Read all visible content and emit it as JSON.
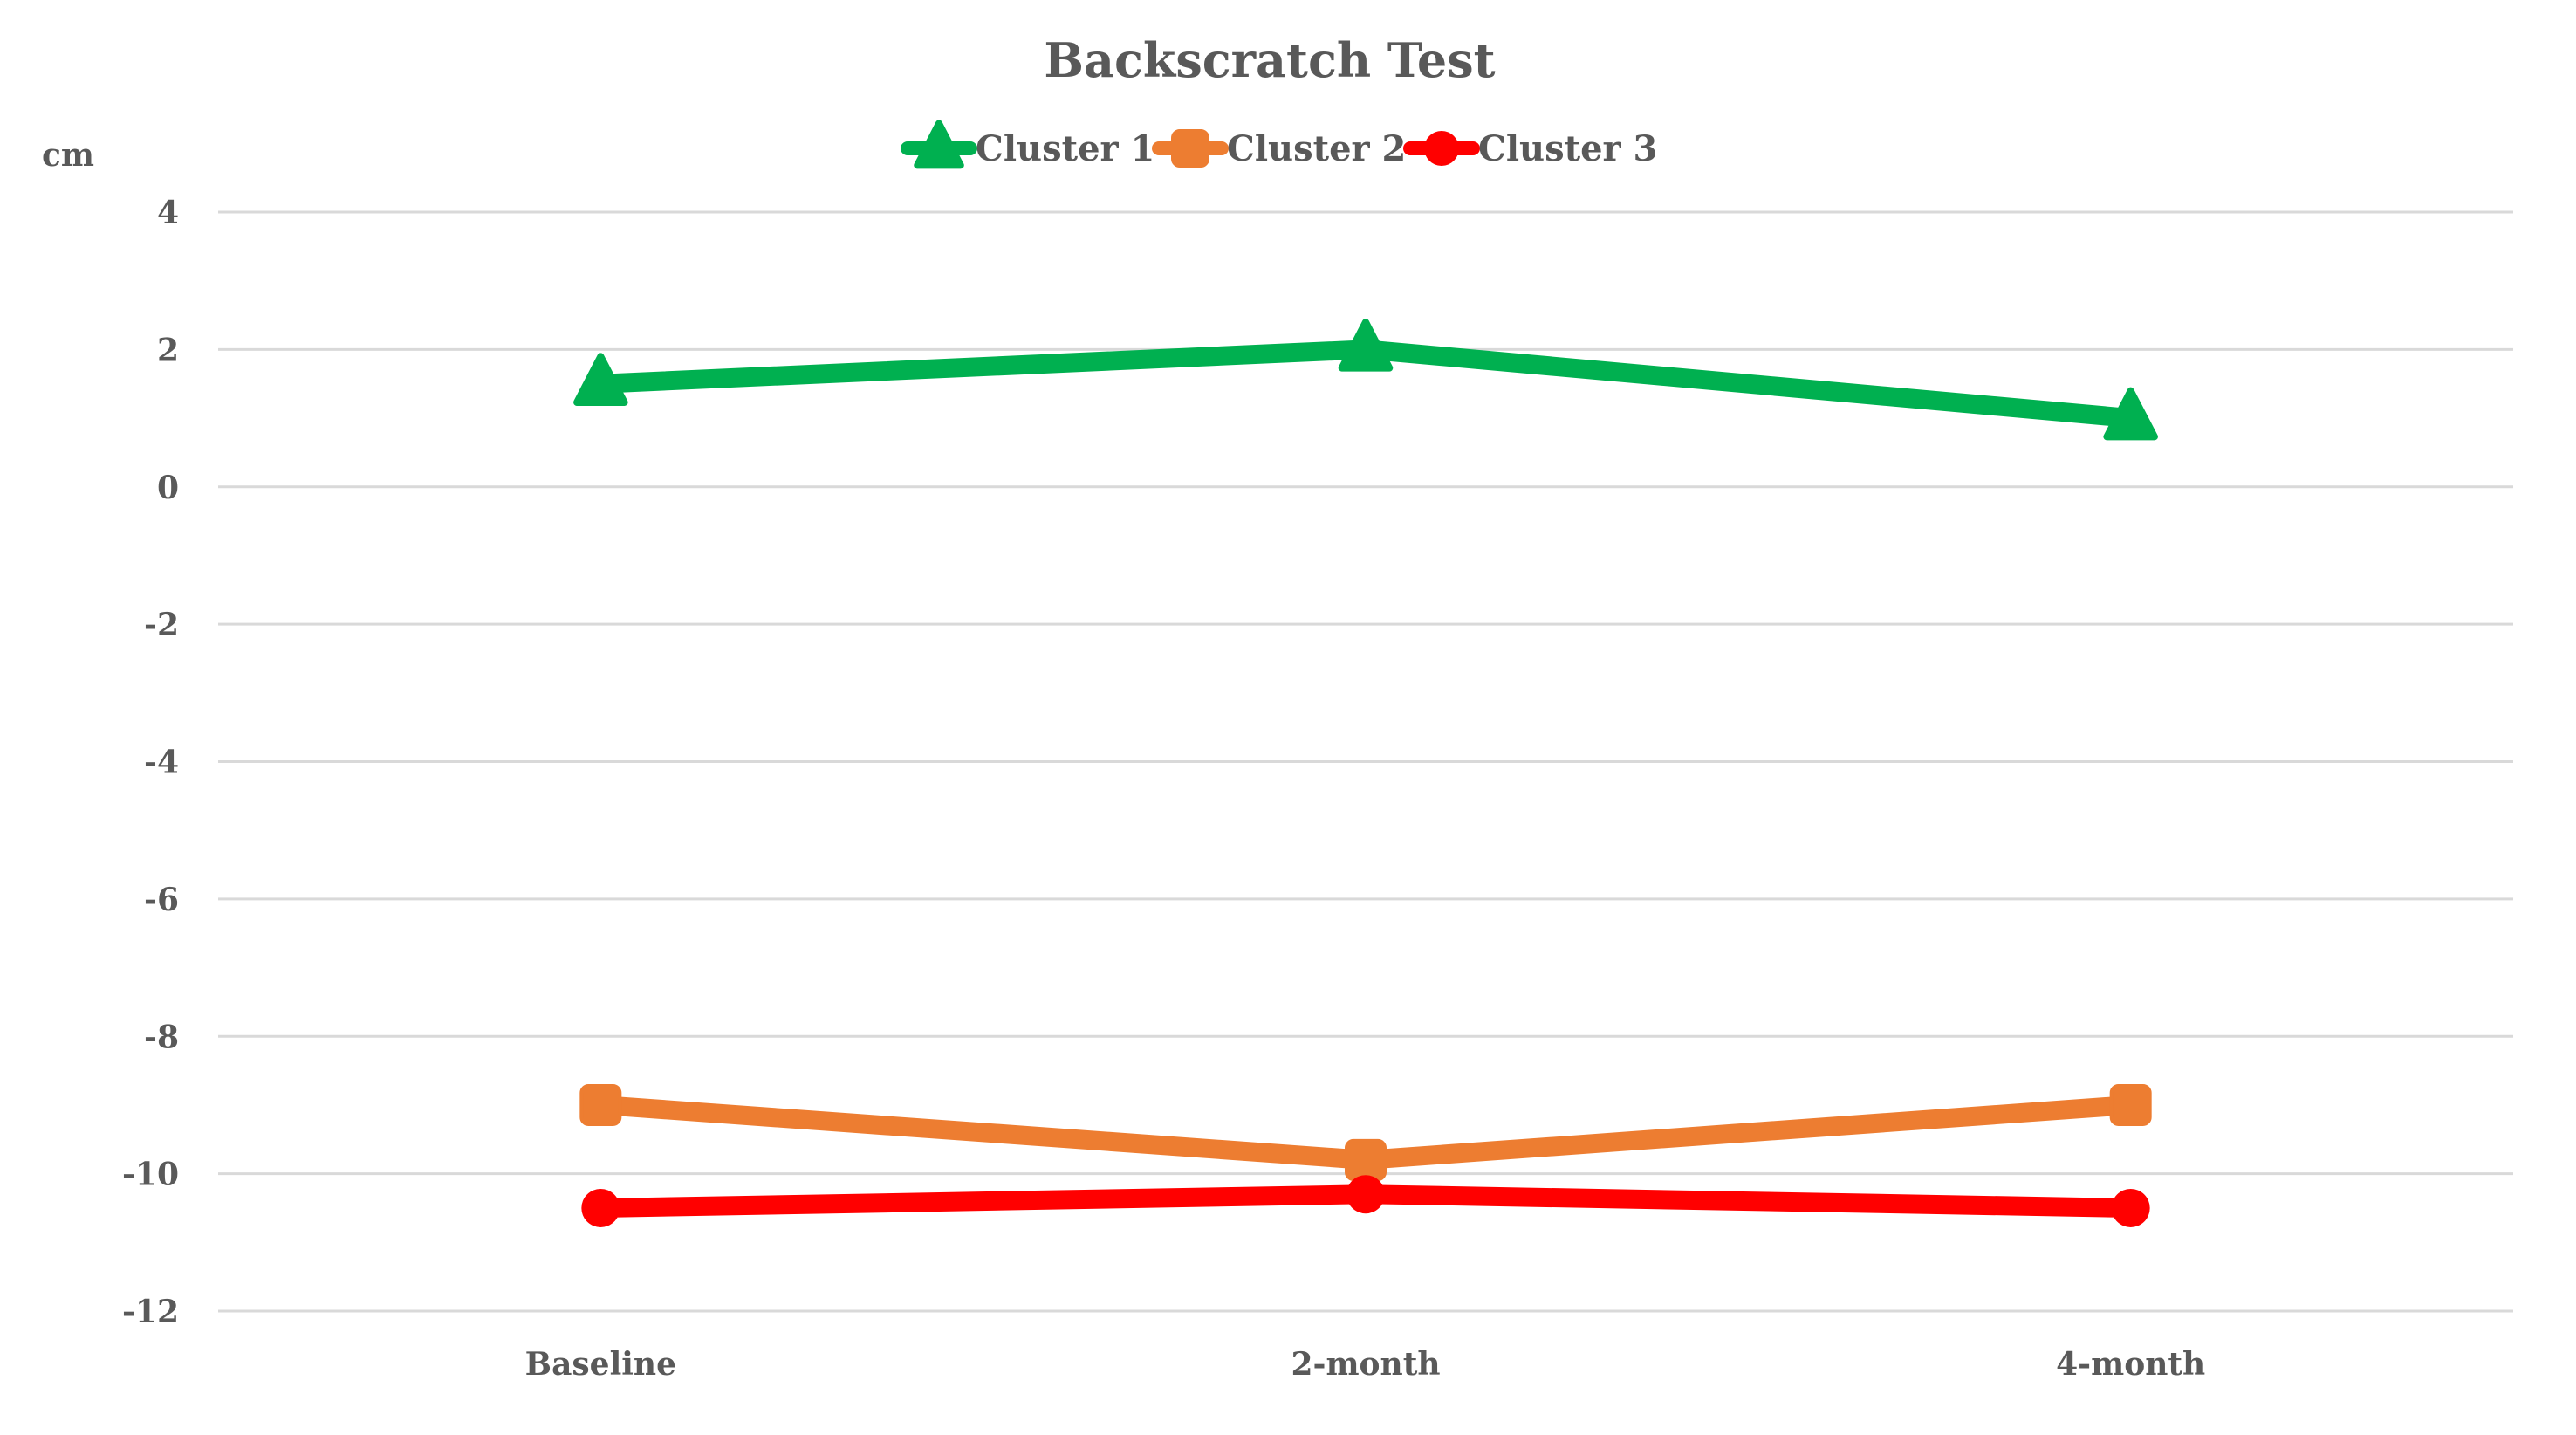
{
  "chart_data": {
    "type": "line",
    "title": "Backscratch Test",
    "ylabel": "cm",
    "xlabel": "",
    "categories": [
      "Baseline",
      "2-month",
      "4-month"
    ],
    "ylim": [
      -12,
      4
    ],
    "yticks": [
      4,
      2,
      0,
      -2,
      -4,
      -6,
      -8,
      -10,
      -12
    ],
    "grid": "horizontal",
    "legend": "top-center",
    "series": [
      {
        "name": "Cluster 1",
        "values": [
          1.5,
          2.0,
          1.0
        ],
        "color": "#00b050",
        "marker": "triangle"
      },
      {
        "name": "Cluster 2",
        "values": [
          -9.0,
          -9.8,
          -9.0
        ],
        "color": "#ed7d31",
        "marker": "square"
      },
      {
        "name": "Cluster 3",
        "values": [
          -10.5,
          -10.3,
          -10.5
        ],
        "color": "#ff0000",
        "marker": "circle"
      }
    ]
  }
}
